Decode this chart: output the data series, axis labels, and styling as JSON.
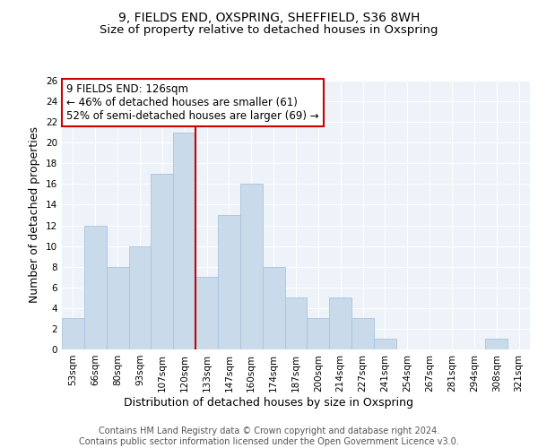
{
  "title": "9, FIELDS END, OXSPRING, SHEFFIELD, S36 8WH",
  "subtitle": "Size of property relative to detached houses in Oxspring",
  "xlabel": "Distribution of detached houses by size in Oxspring",
  "ylabel": "Number of detached properties",
  "categories": [
    "53sqm",
    "66sqm",
    "80sqm",
    "93sqm",
    "107sqm",
    "120sqm",
    "133sqm",
    "147sqm",
    "160sqm",
    "174sqm",
    "187sqm",
    "200sqm",
    "214sqm",
    "227sqm",
    "241sqm",
    "254sqm",
    "267sqm",
    "281sqm",
    "294sqm",
    "308sqm",
    "321sqm"
  ],
  "values": [
    3,
    12,
    8,
    10,
    17,
    21,
    7,
    13,
    16,
    8,
    5,
    3,
    5,
    3,
    1,
    0,
    0,
    0,
    0,
    1,
    0
  ],
  "highlight_index": 5,
  "bar_color": "#c9daea",
  "bar_edge_color": "#a8c4de",
  "highlight_line_color": "#cc0000",
  "annotation_text": "9 FIELDS END: 126sqm\n← 46% of detached houses are smaller (61)\n52% of semi-detached houses are larger (69) →",
  "annotation_box_color": "#ffffff",
  "annotation_box_edge_color": "#cc0000",
  "footer_text": "Contains HM Land Registry data © Crown copyright and database right 2024.\nContains public sector information licensed under the Open Government Licence v3.0.",
  "ylim": [
    0,
    26
  ],
  "yticks": [
    0,
    2,
    4,
    6,
    8,
    10,
    12,
    14,
    16,
    18,
    20,
    22,
    24,
    26
  ],
  "background_color": "#eef2f9",
  "grid_color": "#ffffff",
  "title_fontsize": 10,
  "subtitle_fontsize": 9.5,
  "axis_label_fontsize": 9,
  "tick_fontsize": 7.5,
  "annotation_fontsize": 8.5,
  "footer_fontsize": 7
}
